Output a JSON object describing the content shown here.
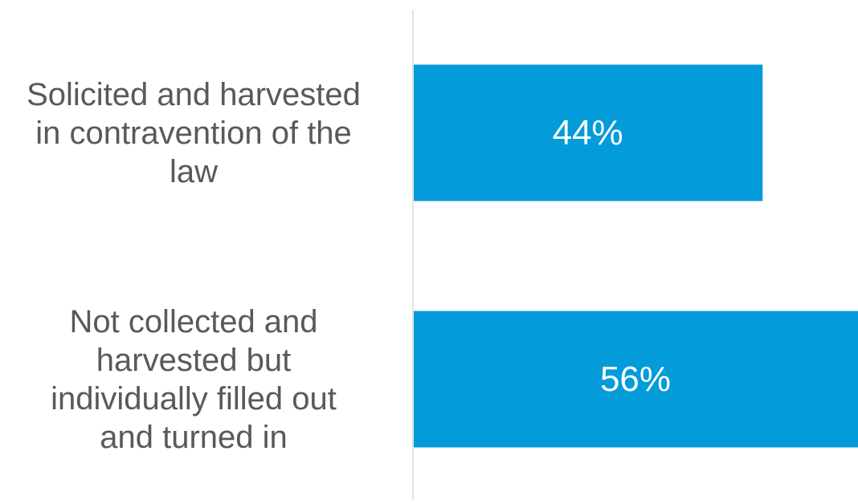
{
  "chart_data": {
    "type": "bar",
    "orientation": "horizontal",
    "categories": [
      "Solicited and harvested in contravention of the law",
      "Not collected and harvested but individually filled out and turned in"
    ],
    "category_lines": [
      [
        "Solicited and harvested",
        "in contravention of the",
        "law"
      ],
      [
        "Not collected and",
        "harvested but",
        "individually filled out",
        "and turned in"
      ]
    ],
    "values": [
      44,
      56
    ],
    "data_labels": [
      "44%",
      "56%"
    ],
    "xlim": [
      0,
      56
    ],
    "bar_color": "#039BD9",
    "data_label_color": "#FFFFFF",
    "category_label_color": "#595959",
    "axis_line_color": "#D9D9D9",
    "gridlines": false,
    "legend": "none"
  }
}
